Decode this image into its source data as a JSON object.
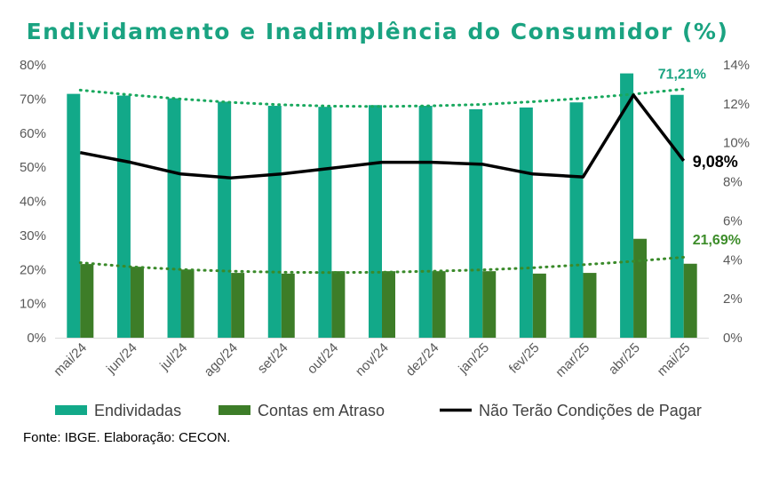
{
  "title": "Endividamento e Inadimplência do Consumidor (%)",
  "source": "Fonte: IBGE. Elaboração: CECON.",
  "colors": {
    "title": "#1aa381",
    "endividadas": "#12a989",
    "contas_atraso": "#3d7d28",
    "nao_pagar": "#000000",
    "trend_endividadas": "#19a85e",
    "trend_atraso": "#3a8a2a",
    "label_endividadas": "#1aa381",
    "label_atraso": "#3d8d2a"
  },
  "chart_data": {
    "type": "bar",
    "categories": [
      "mai/24",
      "jun/24",
      "jul/24",
      "ago/24",
      "set/24",
      "out/24",
      "nov/24",
      "dez/24",
      "jan/25",
      "fev/25",
      "mar/25",
      "abr/25",
      "mai/25"
    ],
    "series": [
      {
        "name": "Endividadas",
        "type": "bar",
        "axis": "left",
        "values": [
          71.5,
          71.0,
          70.2,
          69.2,
          68.0,
          67.7,
          68.2,
          68.0,
          67.0,
          67.5,
          69.0,
          77.5,
          71.21
        ]
      },
      {
        "name": "Contas em Atraso",
        "type": "bar",
        "axis": "left",
        "values": [
          21.6,
          20.8,
          20.0,
          19.0,
          18.8,
          19.5,
          19.5,
          19.5,
          19.5,
          18.8,
          19.0,
          29.0,
          21.69
        ]
      },
      {
        "name": "Não Terão Condições de Pagar",
        "type": "line",
        "axis": "right",
        "values": [
          9.5,
          9.0,
          8.4,
          8.2,
          8.4,
          8.7,
          9.0,
          9.0,
          8.9,
          8.4,
          8.25,
          12.45,
          9.08
        ]
      }
    ],
    "trendlines": [
      {
        "of": "Endividadas",
        "axis": "left",
        "style": "dotted",
        "values": [
          72.6,
          71.2,
          70.0,
          69.0,
          68.3,
          67.9,
          67.8,
          68.0,
          68.4,
          69.2,
          70.2,
          71.4,
          72.9
        ]
      },
      {
        "of": "Contas em Atraso",
        "axis": "left",
        "style": "dotted",
        "values": [
          22.0,
          20.8,
          20.0,
          19.5,
          19.2,
          19.1,
          19.2,
          19.5,
          19.9,
          20.5,
          21.4,
          22.4,
          23.6
        ]
      }
    ],
    "y_left": {
      "min": 0,
      "max": 80,
      "step": 10,
      "ticks": [
        "0%",
        "10%",
        "20%",
        "30%",
        "40%",
        "50%",
        "60%",
        "70%",
        "80%"
      ]
    },
    "y_right": {
      "min": 0,
      "max": 14,
      "step": 2,
      "ticks": [
        "0%",
        "2%",
        "4%",
        "6%",
        "8%",
        "10%",
        "12%",
        "14%"
      ]
    },
    "annotations": [
      {
        "series": "Endividadas",
        "index": 12,
        "text": "71,21%"
      },
      {
        "series": "Contas em Atraso",
        "index": 12,
        "text": "21,69%"
      },
      {
        "series": "Não Terão Condições de Pagar",
        "index": 12,
        "text": "9,08%"
      }
    ],
    "grid": false,
    "legend": {
      "placement": "bottom",
      "items": [
        "Endividadas",
        "Contas em Atraso",
        "Não Terão Condições de Pagar"
      ]
    }
  }
}
